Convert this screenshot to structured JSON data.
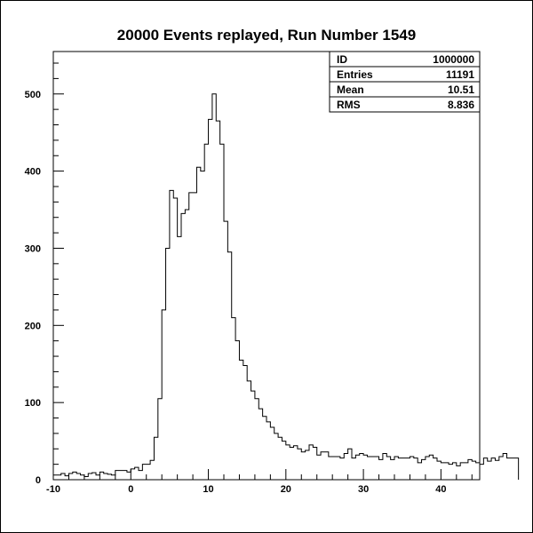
{
  "chart_data": {
    "type": "histogram",
    "title": "20000 Events replayed, Run Number 1549",
    "xlabel": "",
    "ylabel": "",
    "xlim": [
      -10,
      45
    ],
    "ylim": [
      0,
      555
    ],
    "x_ticks": [
      -10,
      0,
      10,
      20,
      30,
      40
    ],
    "y_ticks": [
      0,
      100,
      200,
      300,
      400,
      500
    ],
    "grid": false,
    "bin_width": 0.5,
    "bin_start": -10,
    "values": [
      6,
      6,
      8,
      5,
      8,
      10,
      8,
      6,
      4,
      8,
      9,
      6,
      10,
      8,
      7,
      6,
      12,
      12,
      12,
      10,
      14,
      16,
      12,
      20,
      20,
      25,
      55,
      105,
      220,
      300,
      375,
      365,
      315,
      345,
      350,
      372,
      372,
      405,
      400,
      435,
      467,
      500,
      465,
      435,
      335,
      295,
      210,
      180,
      155,
      148,
      128,
      115,
      105,
      92,
      82,
      75,
      68,
      60,
      55,
      50,
      45,
      42,
      44,
      40,
      36,
      38,
      45,
      42,
      32,
      36,
      36,
      30,
      30,
      30,
      28,
      34,
      40,
      28,
      32,
      34,
      32,
      30,
      30,
      30,
      26,
      34,
      30,
      26,
      30,
      28,
      28,
      28,
      30,
      28,
      22,
      26,
      30,
      32,
      28,
      24,
      22,
      22,
      20,
      22,
      18,
      22,
      22,
      26,
      24,
      22,
      20,
      28,
      24,
      28,
      25,
      30,
      34,
      28,
      28,
      28
    ],
    "stats_box": {
      "rows": [
        {
          "label": "ID",
          "value": "1000000"
        },
        {
          "label": "Entries",
          "value": "11191"
        },
        {
          "label": "Mean",
          "value": "10.51"
        },
        {
          "label": "RMS",
          "value": "8.836"
        }
      ]
    }
  }
}
